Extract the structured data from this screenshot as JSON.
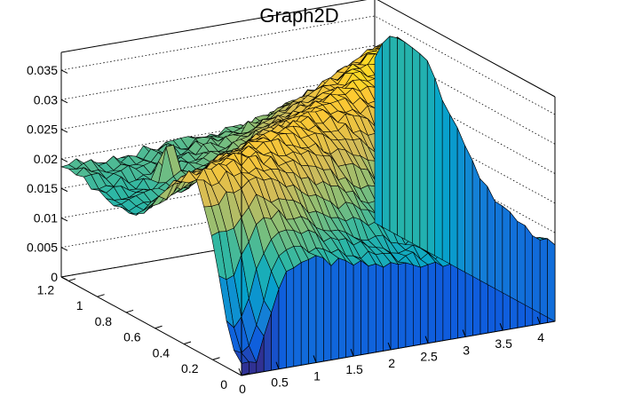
{
  "chart_data": {
    "type": "surface",
    "title": "Graph2D",
    "x_range": [
      0,
      4.2
    ],
    "y_range": [
      0,
      1.25
    ],
    "z_range": [
      0,
      0.038
    ],
    "x_ticks": [
      "0",
      "0.5",
      "1",
      "1.5",
      "2",
      "2.5",
      "3",
      "3.5",
      "4"
    ],
    "y_ticks": [
      "0",
      "0.2",
      "0.4",
      "0.6",
      "0.8",
      "1",
      "1.2"
    ],
    "z_ticks": [
      "0",
      "0.005",
      "0.01",
      "0.015",
      "0.02",
      "0.025",
      "0.03",
      "0.035"
    ],
    "grid": true,
    "palette": [
      "#352a87",
      "#0f5cdd",
      "#1481d6",
      "#06a4ca",
      "#2eb7a4",
      "#87bf77",
      "#d1bb59",
      "#fec832",
      "#f9fb0e"
    ]
  }
}
